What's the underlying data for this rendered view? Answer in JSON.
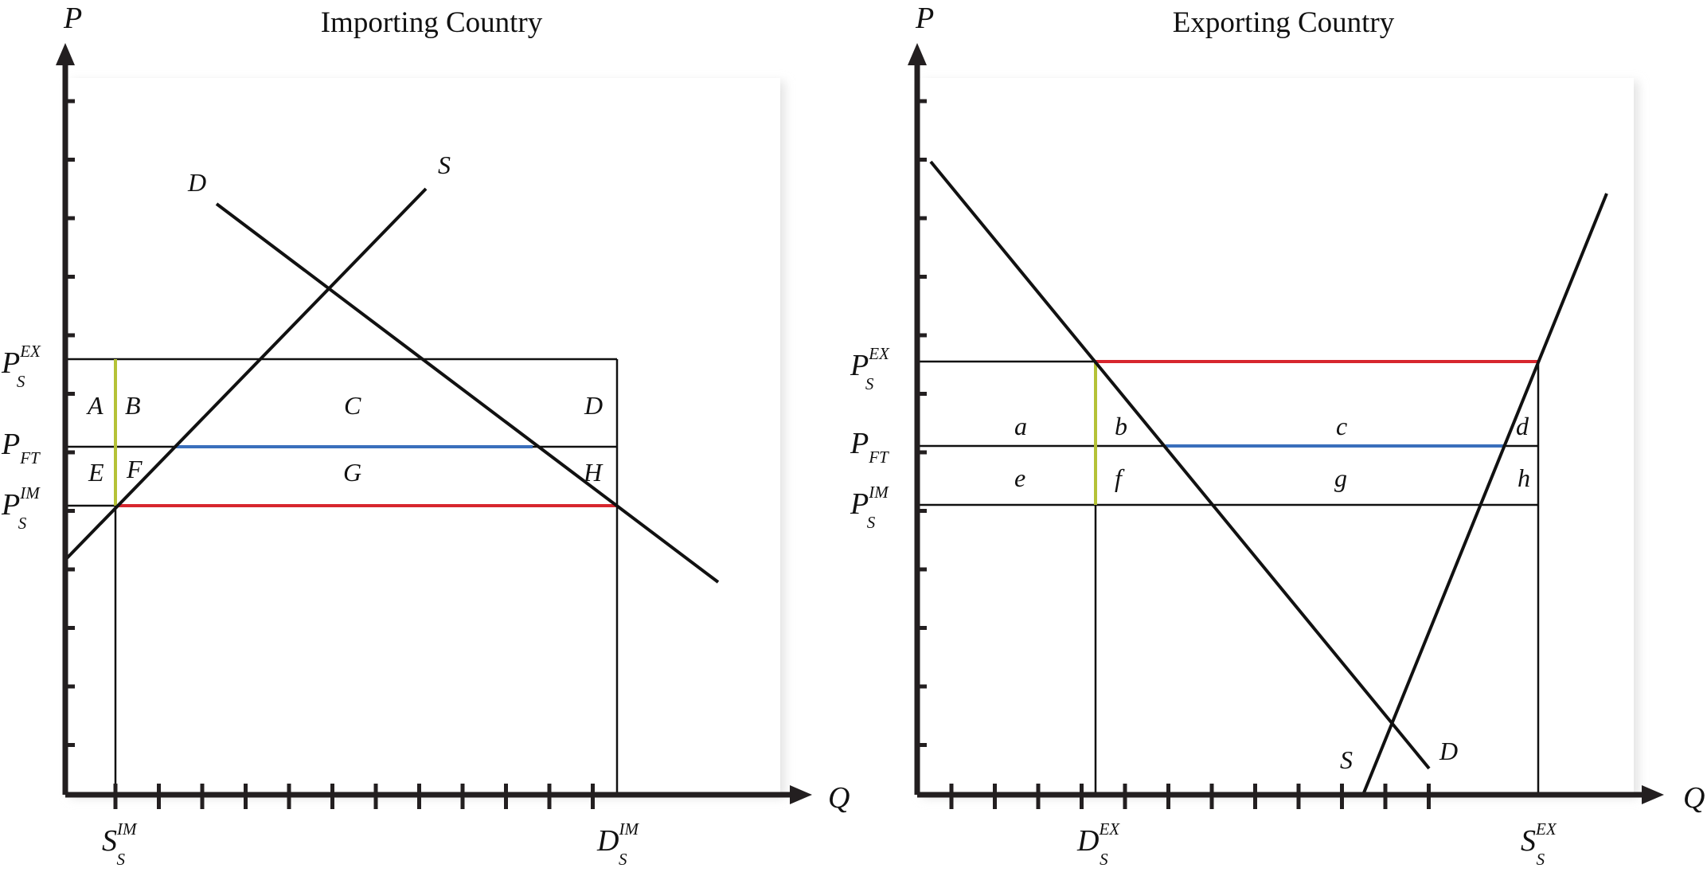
{
  "colors": {
    "axis": "#231f20",
    "line": "#111111",
    "red": "#d7262e",
    "blue": "#3a6fbc",
    "yellow": "#b5c237",
    "panel": "#ffffff",
    "shadow": "#e2e2e2"
  },
  "left": {
    "title": "Importing Country",
    "y_axis": "P",
    "x_axis": "Q",
    "curve_labels": {
      "demand": "D",
      "supply": "S"
    },
    "price_labels": [
      {
        "main": "P",
        "sup": "EX",
        "sub": "S"
      },
      {
        "main": "P",
        "sub": "FT"
      },
      {
        "main": "P",
        "sup": "IM",
        "sub": "S"
      }
    ],
    "quantity_labels": [
      {
        "main": "S",
        "sup": "IM",
        "sub": "S"
      },
      {
        "main": "D",
        "sup": "IM",
        "sub": "S"
      }
    ],
    "regions": [
      "A",
      "B",
      "C",
      "D",
      "E",
      "F",
      "G",
      "H"
    ]
  },
  "right": {
    "title": "Exporting Country",
    "y_axis": "P",
    "x_axis": "Q",
    "curve_labels": {
      "demand": "D",
      "supply": "S"
    },
    "price_labels": [
      {
        "main": "P",
        "sup": "EX",
        "sub": "S"
      },
      {
        "main": "P",
        "sub": "FT"
      },
      {
        "main": "P",
        "sup": "IM",
        "sub": "S"
      }
    ],
    "quantity_labels": [
      {
        "main": "D",
        "sup": "EX",
        "sub": "S"
      },
      {
        "main": "S",
        "sup": "EX",
        "sub": "S"
      }
    ],
    "regions": [
      "a",
      "b",
      "c",
      "d",
      "e",
      "f",
      "g",
      "h"
    ]
  }
}
